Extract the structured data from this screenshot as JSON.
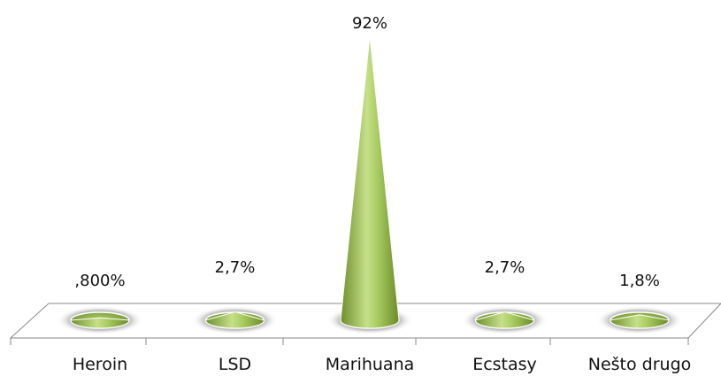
{
  "chart_data": {
    "type": "bar",
    "style": "3d-cone",
    "categories": [
      "Heroin",
      "LSD",
      "Marihuana",
      "Ecstasy",
      "Nešto drugo"
    ],
    "values": [
      0.8,
      2.7,
      92,
      2.7,
      1.8
    ],
    "data_labels": [
      ",800%",
      "2,7%",
      "92%",
      "2,7%",
      "1,8%"
    ],
    "ylim": [
      0,
      100
    ],
    "grid": false,
    "legend": "none",
    "title": "",
    "xlabel": "",
    "ylabel": "",
    "colors": {
      "cone_dark": "#6e8f2c",
      "cone_light": "#d7ecaa",
      "cone_mid": "#9cc452",
      "floor_stroke": "#777777",
      "shadow": "#8a8a8a"
    }
  }
}
